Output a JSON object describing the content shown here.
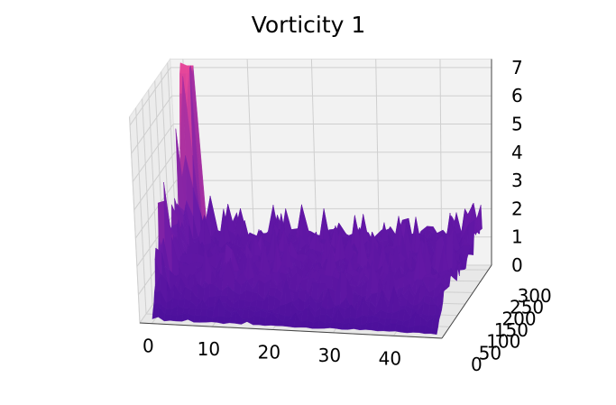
{
  "chart_data": {
    "type": "surface3d",
    "title": "Vorticity 1",
    "xlabel": "",
    "ylabel": "",
    "zlabel": "",
    "x_ticks": [
      0,
      10,
      20,
      30,
      40
    ],
    "y_ticks": [
      0,
      50,
      100,
      150,
      200,
      250,
      300
    ],
    "z_ticks": [
      0,
      1,
      2,
      3,
      4,
      5,
      6,
      7
    ],
    "xlim": [
      -2,
      48
    ],
    "ylim": [
      0,
      320
    ],
    "zlim": [
      0,
      7.3
    ],
    "grid": true,
    "colormap": "plasma-like (violet low, magenta/pink high)",
    "surface": {
      "base_level_x_gt_5": 1.2,
      "base_level_y_near_0": 0.05,
      "peak": {
        "x": 1,
        "y": 300,
        "z": 7.2
      },
      "ridge_x_range": [
        0,
        3
      ],
      "ridge_values": [
        6.5,
        3.0,
        1.8
      ],
      "edge_spike": {
        "x": 47,
        "y": 300,
        "z": 2.5
      }
    },
    "colors": {
      "low": "#4a0f9b",
      "mid": "#6a1aa8",
      "high": "#e6469a",
      "pane": "#f2f2f2",
      "grid": "#cfcfcf"
    }
  }
}
